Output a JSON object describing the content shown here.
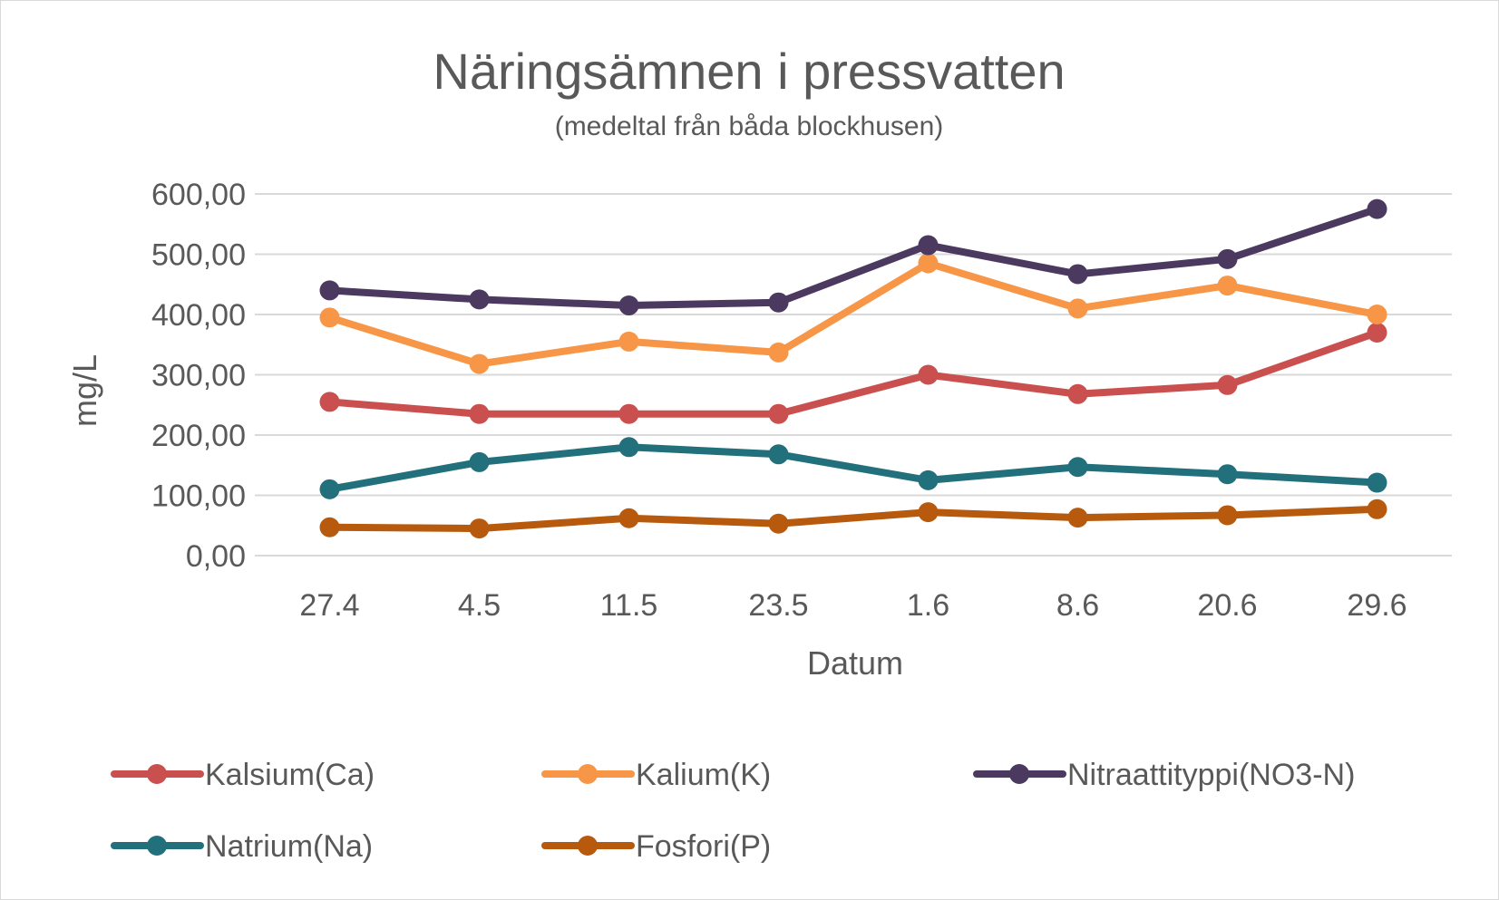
{
  "chart_data": {
    "type": "line",
    "title": "Näringsämnen i pressvatten",
    "subtitle": "(medeltal från båda blockhusen)",
    "xlabel": "Datum",
    "ylabel": "mg/L",
    "ylim": [
      0,
      600
    ],
    "y_ticks": [
      "0,00",
      "100,00",
      "200,00",
      "300,00",
      "400,00",
      "500,00",
      "600,00"
    ],
    "y_tick_values": [
      0,
      100,
      200,
      300,
      400,
      500,
      600
    ],
    "categories": [
      "27.4",
      "4.5",
      "11.5",
      "23.5",
      "1.6",
      "8.6",
      "20.6",
      "29.6"
    ],
    "grid": true,
    "legend_position": "bottom",
    "series": [
      {
        "name": "Kalsium(Ca)",
        "color": "#c9504e",
        "values": [
          255,
          235,
          235,
          235,
          300,
          268,
          283,
          370
        ]
      },
      {
        "name": "Kalium(K)",
        "color": "#f79646",
        "values": [
          395,
          318,
          355,
          337,
          485,
          410,
          448,
          400
        ]
      },
      {
        "name": "Nitraattityppi(NO3-N)",
        "color": "#4b3960",
        "values": [
          440,
          425,
          415,
          420,
          515,
          467,
          492,
          575
        ]
      },
      {
        "name": "Natrium(Na)",
        "color": "#23707d",
        "values": [
          110,
          155,
          180,
          168,
          125,
          147,
          135,
          121
        ]
      },
      {
        "name": "Fosfori(P)",
        "color": "#b85a0d",
        "values": [
          47,
          45,
          62,
          53,
          72,
          63,
          67,
          77
        ]
      }
    ]
  }
}
